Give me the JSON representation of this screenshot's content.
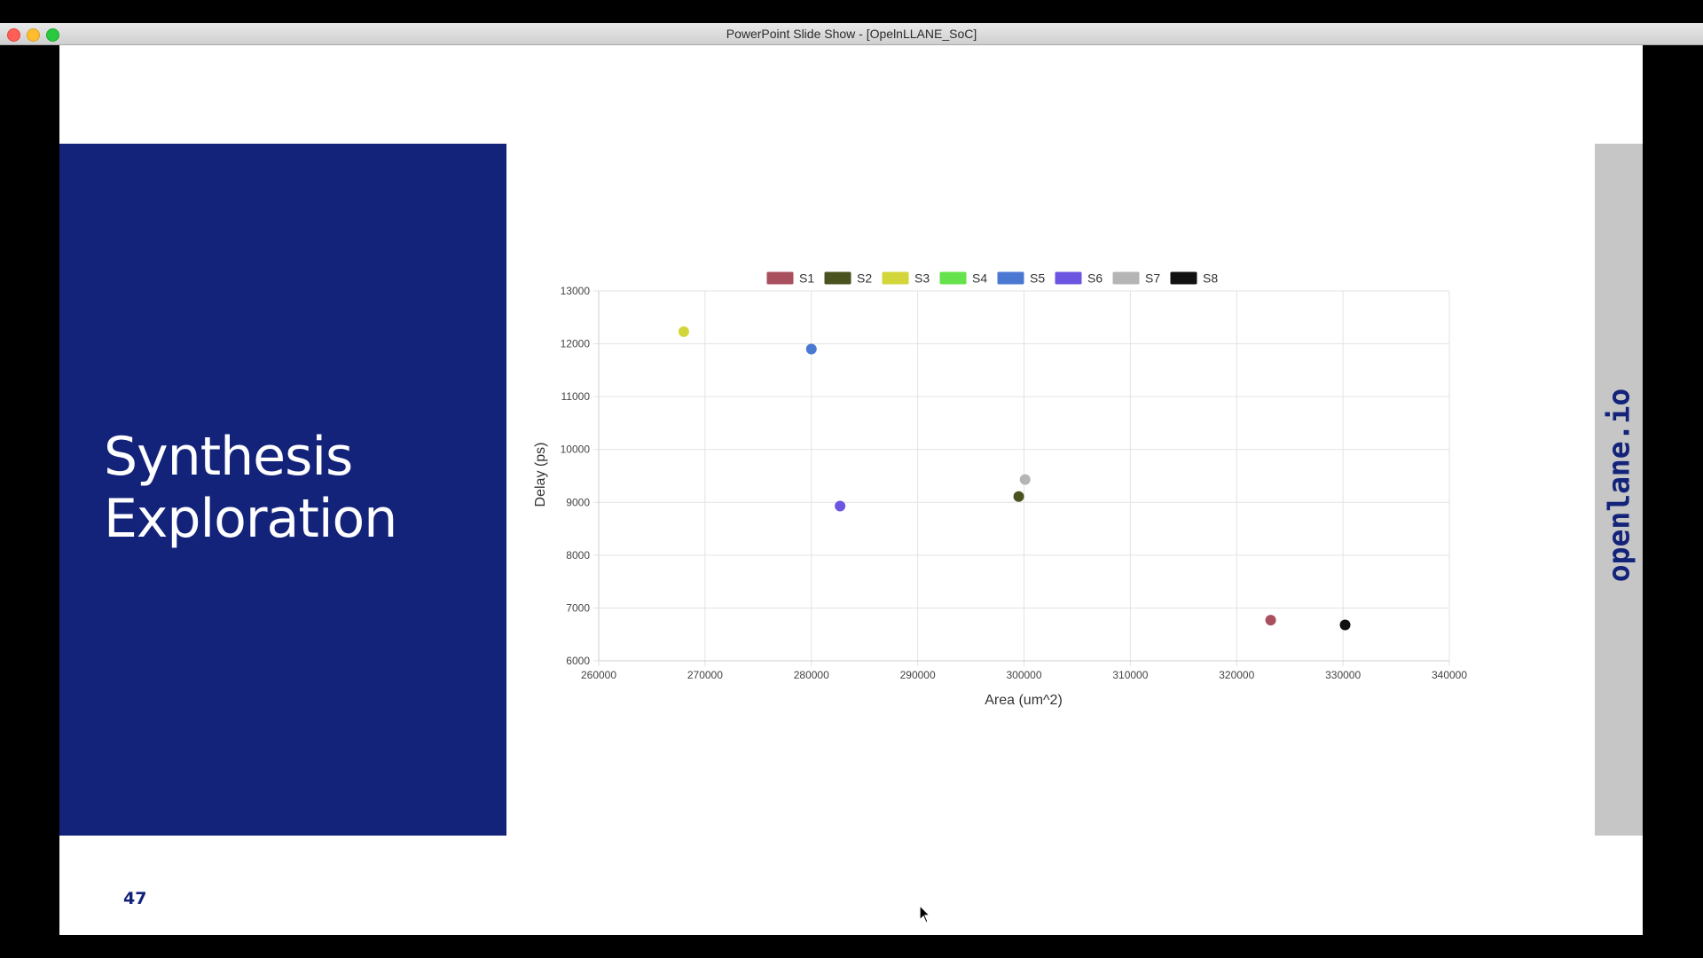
{
  "window": {
    "title": "PowerPoint Slide Show - [OpelnLLANE_SoC]"
  },
  "slide": {
    "title_line1": "Synthesis",
    "title_line2": "Exploration",
    "brand": "openlane.io",
    "number": "47"
  },
  "chart_data": {
    "type": "scatter",
    "title": "",
    "xlabel": "Area (um^2)",
    "ylabel": "Delay (ps)",
    "xlim": [
      260000,
      340000
    ],
    "ylim": [
      6000,
      13000
    ],
    "x_ticks": [
      "260000",
      "270000",
      "280000",
      "290000",
      "300000",
      "310000",
      "320000",
      "330000",
      "340000"
    ],
    "y_ticks": [
      "13000",
      "12000",
      "11000",
      "10000",
      "9000",
      "8000",
      "7000",
      "6000"
    ],
    "grid": true,
    "legend_position": "top",
    "series": [
      {
        "name": "S1",
        "color": "#a94f5e",
        "points": [
          [
            323200,
            6770
          ]
        ]
      },
      {
        "name": "S2",
        "color": "#4a5220",
        "points": [
          [
            299500,
            9110
          ]
        ]
      },
      {
        "name": "S3",
        "color": "#d3d63a",
        "points": [
          [
            268000,
            12230
          ]
        ]
      },
      {
        "name": "S4",
        "color": "#66e24d",
        "points": []
      },
      {
        "name": "S5",
        "color": "#4a78d3",
        "points": [
          [
            280000,
            11900
          ]
        ]
      },
      {
        "name": "S6",
        "color": "#6c55e0",
        "points": [
          [
            282700,
            8930
          ]
        ]
      },
      {
        "name": "S7",
        "color": "#b5b5b5",
        "points": [
          [
            300100,
            9430
          ]
        ]
      },
      {
        "name": "S8",
        "color": "#111111",
        "points": [
          [
            330200,
            6680
          ]
        ]
      }
    ]
  }
}
